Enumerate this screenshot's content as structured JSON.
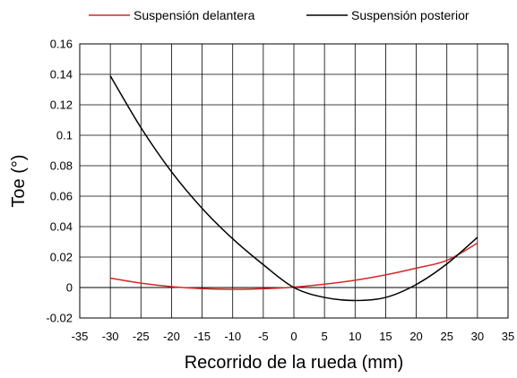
{
  "chart_data": {
    "type": "line",
    "xlabel": "Recorrido de la rueda (mm)",
    "ylabel": "Toe (°)",
    "xlim": [
      -35,
      35
    ],
    "ylim": [
      -0.02,
      0.16
    ],
    "xticks": [
      -35,
      -30,
      -25,
      -20,
      -15,
      -10,
      -5,
      0,
      5,
      10,
      15,
      20,
      25,
      30,
      35
    ],
    "yticks": [
      -0.02,
      0,
      0.02,
      0.04,
      0.06,
      0.08,
      0.1,
      0.12,
      0.14,
      0.16
    ],
    "grid": "major-both",
    "legend_position": "top",
    "series": [
      {
        "name": "Suspensión delantera",
        "color": "#d62728",
        "x": [
          -30,
          -25,
          -20,
          -15,
          -10,
          -5,
          0,
          5,
          10,
          15,
          20,
          25,
          30
        ],
        "y": [
          0.0062,
          0.0029,
          0.0006,
          -0.0007,
          -0.0012,
          -0.0008,
          0.0003,
          0.0022,
          0.0048,
          0.0083,
          0.0127,
          0.0178,
          0.0292
        ]
      },
      {
        "name": "Suspensión posterior",
        "color": "#000000",
        "x": [
          -30,
          -25,
          -20,
          -15,
          -10,
          -5,
          0,
          5,
          10,
          15,
          20,
          25,
          30
        ],
        "y": [
          0.139,
          0.105,
          0.076,
          0.052,
          0.032,
          0.015,
          0.0,
          -0.0065,
          -0.0085,
          -0.0065,
          0.002,
          0.0155,
          0.033
        ]
      }
    ]
  }
}
